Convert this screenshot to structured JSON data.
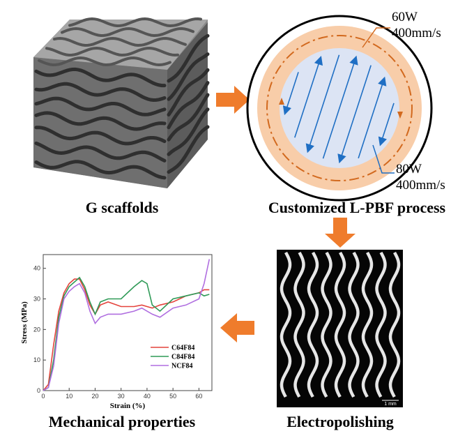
{
  "panels": {
    "scaffold": {
      "label": "G scaffolds"
    },
    "process": {
      "label": "Customized L-PBF process",
      "outer": {
        "power": "60W",
        "speed": "400mm/s"
      },
      "inner": {
        "power": "80W",
        "speed": "400mm/s"
      }
    },
    "electropolishing": {
      "label": "Electropolishing",
      "scale_bar": "1 mm"
    },
    "mechanical": {
      "label": "Mechanical properties"
    }
  },
  "chart_data": {
    "type": "line",
    "x_label": "Strain (%)",
    "y_label": "Stress (MPa)",
    "x": [
      0,
      2,
      4,
      6,
      8,
      10,
      12,
      14,
      16,
      18,
      20,
      22,
      25,
      30,
      35,
      38,
      40,
      42,
      45,
      50,
      55,
      60,
      62,
      64
    ],
    "series": [
      {
        "name": "C64F84",
        "color": "#e4433c",
        "values": [
          0,
          2,
          15,
          26,
          32,
          35,
          36.5,
          36.5,
          33,
          28,
          25,
          28,
          29,
          27.5,
          27.5,
          28,
          27.5,
          27,
          28,
          29,
          31,
          32,
          33,
          33
        ]
      },
      {
        "name": "C84F84",
        "color": "#2f9a57",
        "values": [
          0,
          1,
          10,
          24,
          31,
          34,
          35.5,
          37,
          34,
          29,
          25,
          29,
          30,
          30,
          34,
          36,
          35,
          28,
          26,
          30,
          31,
          32,
          31,
          31.5
        ]
      },
      {
        "name": "NCF84",
        "color": "#b06fe0",
        "values": [
          0,
          1,
          8,
          22,
          30,
          32.5,
          34,
          35,
          32,
          26,
          22,
          24,
          25,
          25,
          26,
          27,
          26,
          25,
          24,
          27,
          28,
          30,
          35,
          43
        ]
      }
    ],
    "xlim": [
      0,
      65
    ],
    "ylim": [
      0,
      44.5
    ],
    "xticks": [
      0,
      10,
      20,
      30,
      40,
      50,
      60
    ],
    "yticks": [
      0,
      10,
      20,
      30,
      40
    ],
    "legend": "lower right"
  }
}
